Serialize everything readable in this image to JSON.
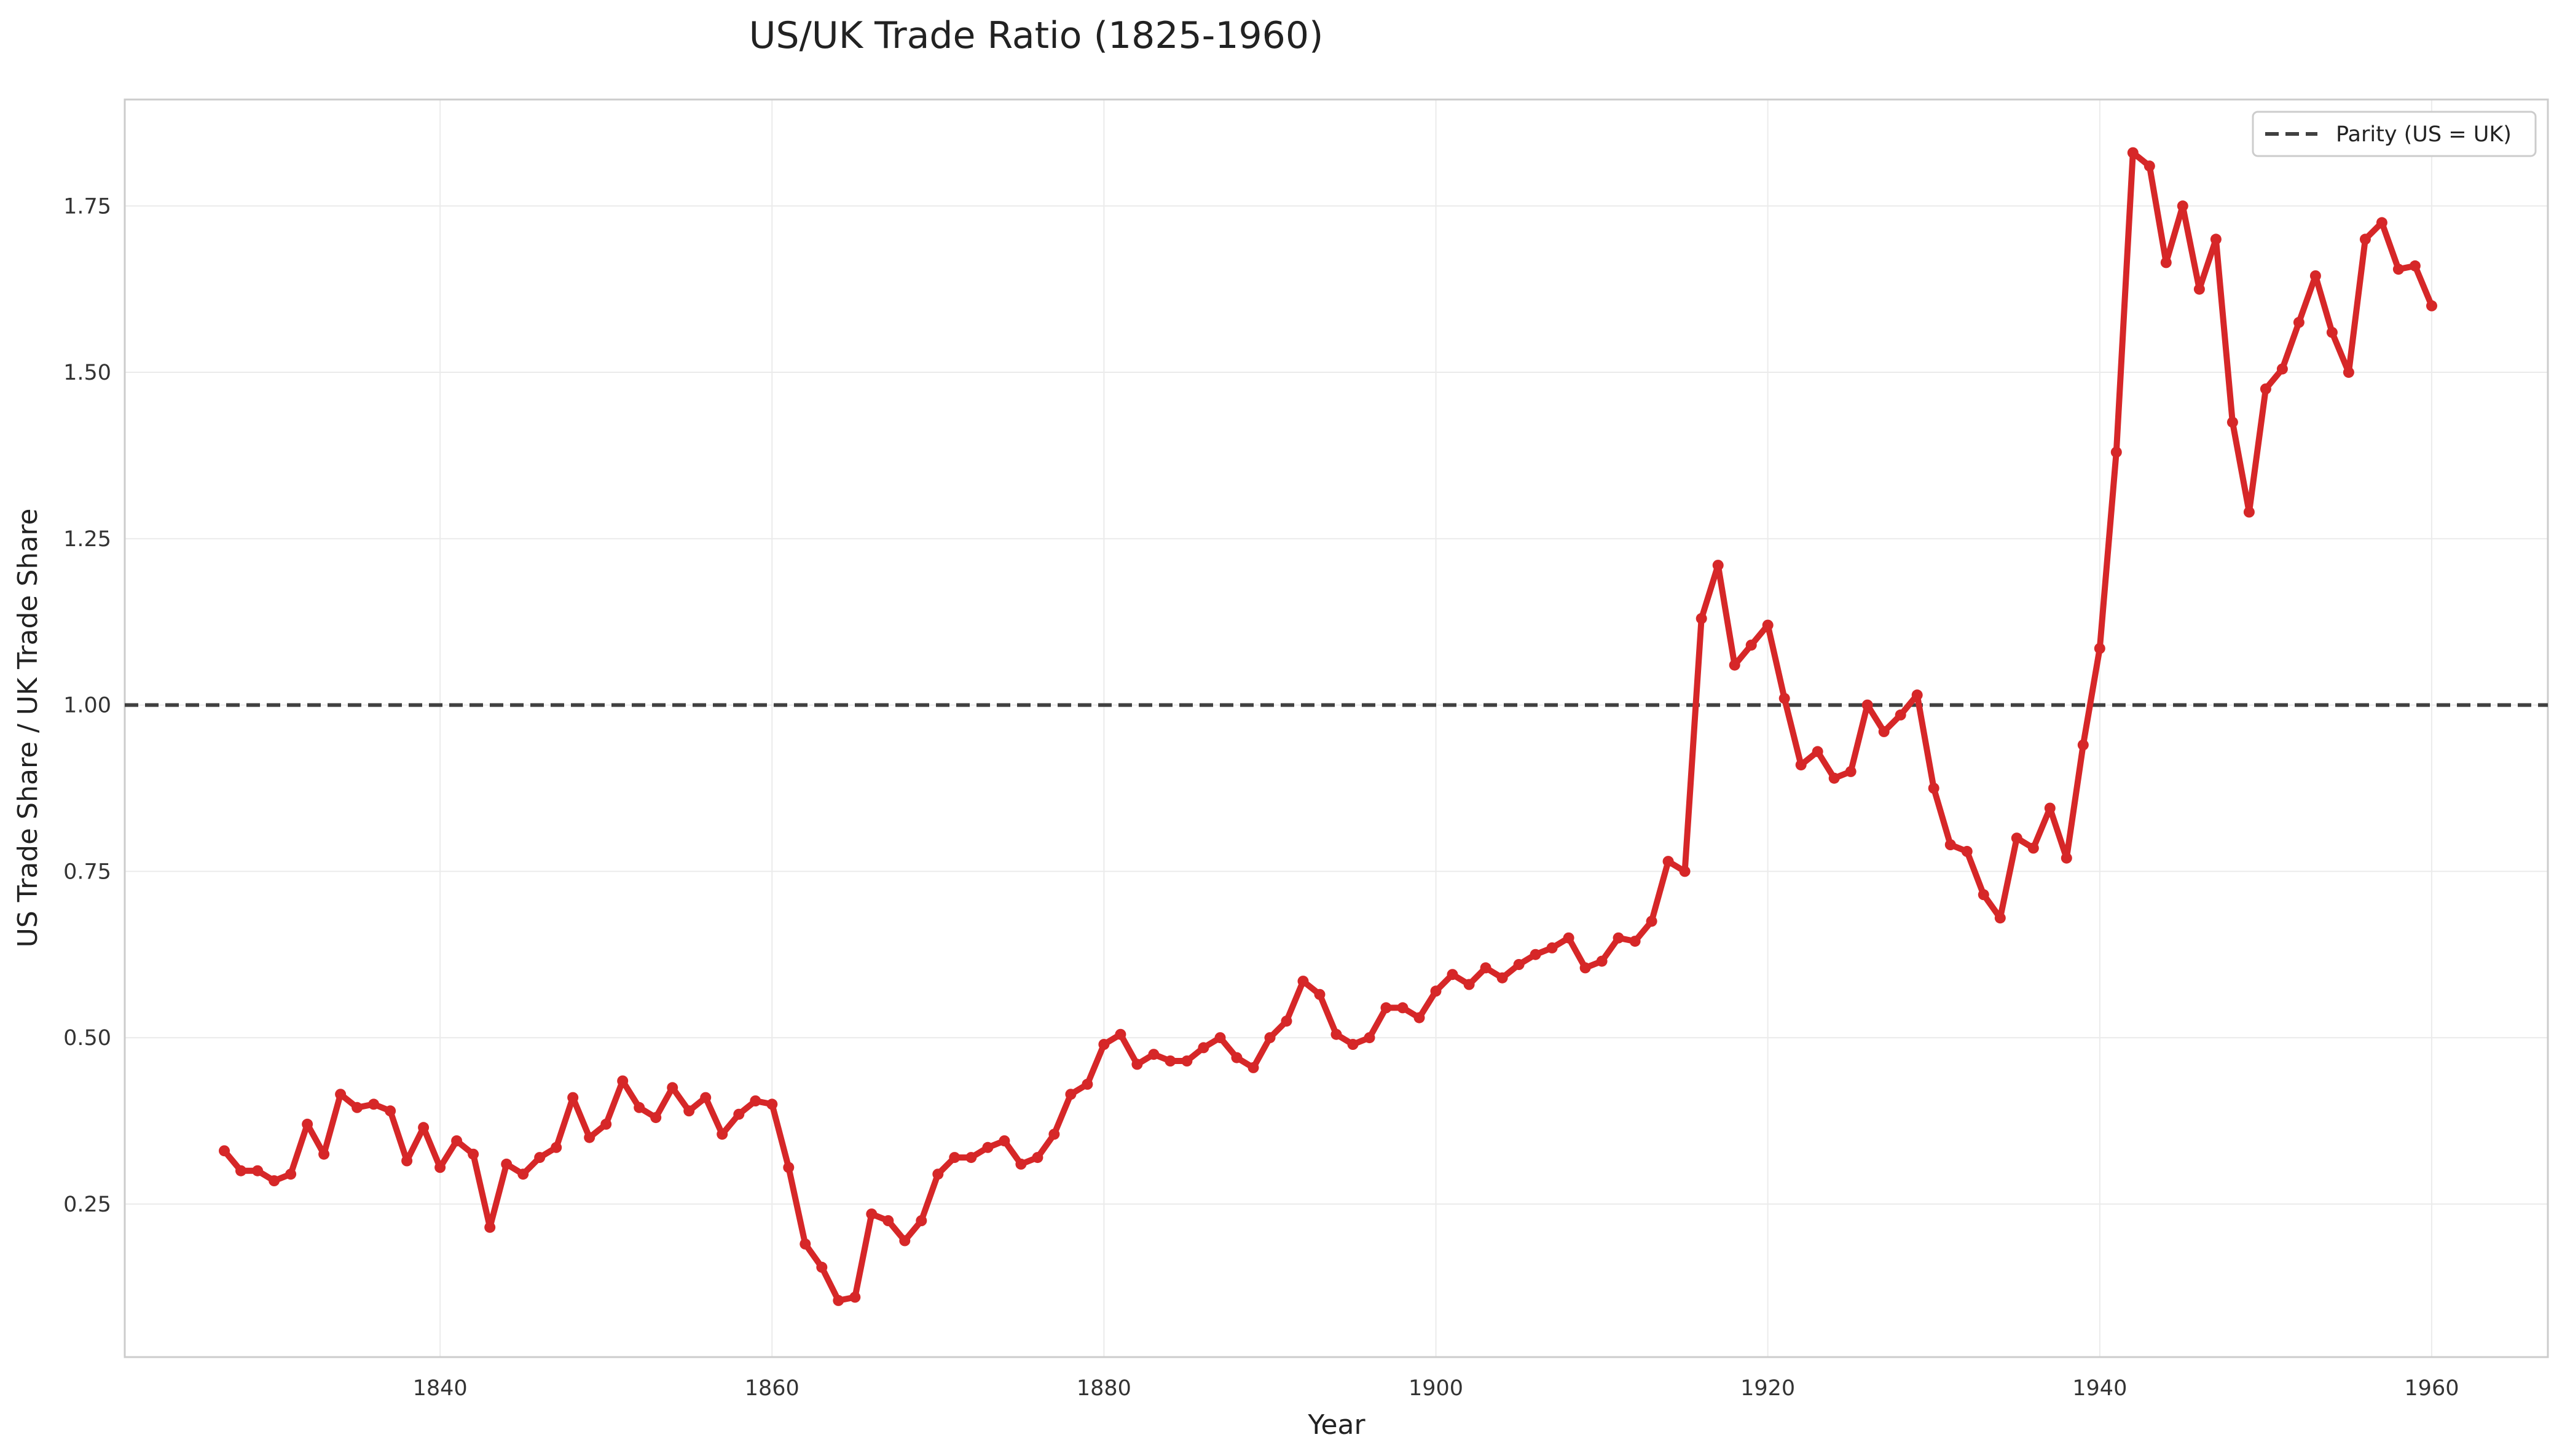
{
  "chart_data": {
    "type": "line",
    "title": "US/UK Trade Ratio (1825-1960)",
    "xlabel": "Year",
    "ylabel": "US Trade Share / UK Trade Share",
    "xlim": [
      1821,
      1967
    ],
    "ylim": [
      0.02,
      1.91
    ],
    "xticks": [
      1840,
      1860,
      1880,
      1900,
      1920,
      1940,
      1960
    ],
    "yticks": [
      0.25,
      0.5,
      0.75,
      1.0,
      1.25,
      1.5,
      1.75
    ],
    "ytick_labels": [
      "0.25",
      "0.50",
      "0.75",
      "1.00",
      "1.25",
      "1.50",
      "1.75"
    ],
    "grid": true,
    "legend_position": "top-right",
    "colors": {
      "series": "#d62728",
      "parity": "#404040",
      "grid": "#ebebeb",
      "frame": "#cccccc"
    },
    "reference_line": {
      "name": "Parity (US = UK)",
      "y": 1.0
    },
    "series": [
      {
        "x": [
          1827,
          1828,
          1829,
          1830,
          1831,
          1832,
          1833,
          1834,
          1835,
          1836,
          1837,
          1838,
          1839,
          1840,
          1841,
          1842,
          1843,
          1844,
          1845,
          1846,
          1847,
          1848,
          1849,
          1850,
          1851,
          1852,
          1853,
          1854,
          1855,
          1856,
          1857,
          1858,
          1859,
          1860,
          1861,
          1862,
          1863,
          1864,
          1865,
          1866,
          1867,
          1868,
          1869,
          1870,
          1871,
          1872,
          1873,
          1874,
          1875,
          1876,
          1877,
          1878,
          1879,
          1880,
          1881,
          1882,
          1883,
          1884,
          1885,
          1886,
          1887,
          1888,
          1889,
          1890,
          1891,
          1892,
          1893,
          1894,
          1895,
          1896,
          1897,
          1898,
          1899,
          1900,
          1901,
          1902,
          1903,
          1904,
          1905,
          1906,
          1907,
          1908,
          1909,
          1910,
          1911,
          1912,
          1913,
          1914,
          1915,
          1916,
          1917,
          1918,
          1919,
          1920,
          1921,
          1922,
          1923,
          1924,
          1925,
          1926,
          1927,
          1928,
          1929,
          1930,
          1931,
          1932,
          1933,
          1934,
          1935,
          1936,
          1937,
          1938,
          1939,
          1940,
          1941,
          1942,
          1943,
          1944,
          1945,
          1946,
          1947,
          1948,
          1949,
          1950,
          1951,
          1952,
          1953,
          1954,
          1955,
          1956,
          1957,
          1958,
          1959,
          1960
        ],
        "y": [
          0.33,
          0.3,
          0.3,
          0.285,
          0.295,
          0.37,
          0.325,
          0.415,
          0.395,
          0.4,
          0.39,
          0.315,
          0.365,
          0.305,
          0.345,
          0.325,
          0.215,
          0.31,
          0.295,
          0.32,
          0.335,
          0.41,
          0.35,
          0.37,
          0.435,
          0.395,
          0.38,
          0.425,
          0.39,
          0.41,
          0.355,
          0.385,
          0.405,
          0.4,
          0.305,
          0.19,
          0.155,
          0.105,
          0.11,
          0.235,
          0.225,
          0.195,
          0.225,
          0.295,
          0.32,
          0.32,
          0.335,
          0.345,
          0.31,
          0.32,
          0.355,
          0.415,
          0.43,
          0.49,
          0.505,
          0.46,
          0.475,
          0.465,
          0.465,
          0.485,
          0.5,
          0.47,
          0.455,
          0.5,
          0.525,
          0.585,
          0.565,
          0.505,
          0.49,
          0.5,
          0.545,
          0.545,
          0.53,
          0.57,
          0.595,
          0.58,
          0.605,
          0.59,
          0.61,
          0.625,
          0.635,
          0.65,
          0.605,
          0.615,
          0.65,
          0.645,
          0.675,
          0.765,
          0.75,
          1.13,
          1.21,
          1.06,
          1.09,
          1.12,
          1.01,
          0.91,
          0.93,
          0.89,
          0.9,
          1.0,
          0.96,
          0.985,
          1.015,
          0.875,
          0.79,
          0.78,
          0.715,
          0.68,
          0.8,
          0.785,
          0.845,
          0.77,
          0.94,
          1.085,
          1.38,
          1.83,
          1.81,
          1.665,
          1.75,
          1.625,
          1.7,
          1.425,
          1.29,
          1.475,
          1.505,
          1.575,
          1.645,
          1.56,
          1.5,
          1.7,
          1.725,
          1.655,
          1.66,
          1.6
        ]
      }
    ]
  }
}
